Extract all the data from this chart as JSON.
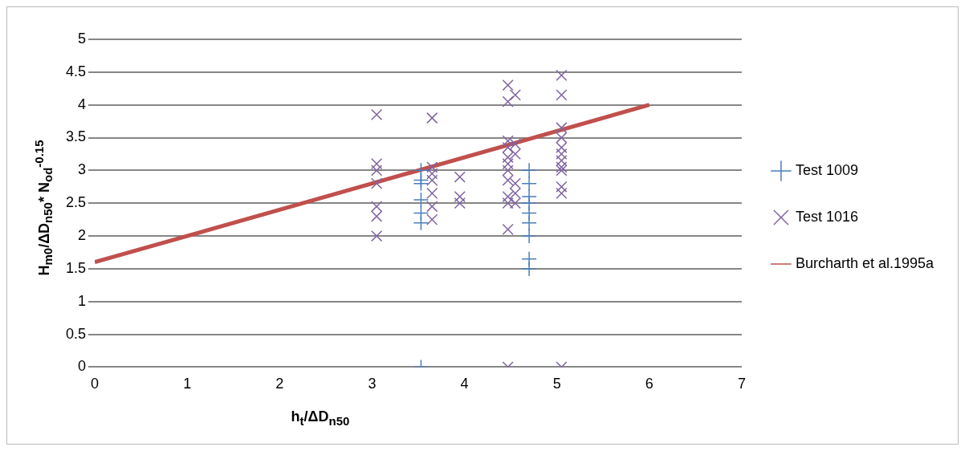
{
  "chart_data": {
    "type": "scatter",
    "xlabel": "h$_{t}$/ΔD$_{n50}$",
    "ylabel": "H$_{m0}$/ΔD$_{n50}$* N$_{od}$$^{-0.15}$",
    "xlim": [
      0,
      7
    ],
    "xticks": [
      0,
      1,
      2,
      3,
      4,
      5,
      6,
      7
    ],
    "ylim": [
      0,
      5
    ],
    "yticks": [
      0,
      0.5,
      1,
      1.5,
      2,
      2.5,
      3,
      3.5,
      4,
      4.5,
      5
    ],
    "grid": "y",
    "legend": "right",
    "series": [
      {
        "name": "Test 1009",
        "color": "#4a7ebb",
        "marker": "plus",
        "x": [
          3.53,
          3.53,
          3.53,
          3.53,
          3.53,
          3.53,
          3.53,
          4.7,
          4.7,
          4.7,
          4.7,
          4.7,
          4.7,
          4.7,
          4.7,
          4.7
        ],
        "values": [
          3.0,
          2.85,
          2.8,
          2.55,
          2.35,
          2.2,
          0,
          3.0,
          2.8,
          2.6,
          2.5,
          2.35,
          2.2,
          2.0,
          1.65,
          1.5
        ]
      },
      {
        "name": "Test 1016",
        "color": "#8064a2",
        "marker": "cross",
        "x": [
          3.05,
          3.05,
          3.05,
          3.05,
          3.05,
          3.05,
          3.05,
          3.65,
          3.65,
          3.65,
          3.65,
          3.65,
          3.65,
          3.65,
          3.95,
          3.95,
          3.95,
          4.47,
          4.47,
          4.47,
          4.47,
          4.47,
          4.47,
          4.47,
          4.47,
          4.47,
          4.47,
          4.47,
          4.47,
          4.55,
          4.55,
          4.55,
          4.55,
          4.55,
          4.55,
          5.05,
          5.05,
          5.05,
          5.05,
          5.05,
          5.05,
          5.05,
          5.05,
          5.05,
          5.05,
          5.05,
          5.05
        ],
        "values": [
          3.85,
          3.1,
          3.0,
          2.8,
          2.45,
          2.3,
          2.0,
          3.8,
          3.05,
          2.95,
          2.85,
          2.65,
          2.45,
          2.25,
          2.9,
          2.6,
          2.5,
          4.3,
          4.05,
          3.45,
          3.35,
          3.2,
          3.1,
          3.0,
          2.85,
          2.6,
          2.5,
          2.1,
          0,
          4.15,
          3.4,
          3.25,
          2.8,
          2.65,
          2.5,
          4.45,
          4.15,
          3.65,
          3.5,
          3.35,
          3.25,
          3.15,
          3.05,
          3.0,
          2.75,
          2.65,
          0
        ]
      },
      {
        "name": "Burcharth et al.1995a",
        "color": "#c0504d",
        "type": "line",
        "marker": "none",
        "x": [
          0,
          6
        ],
        "values": [
          1.6,
          4.0
        ]
      }
    ]
  }
}
